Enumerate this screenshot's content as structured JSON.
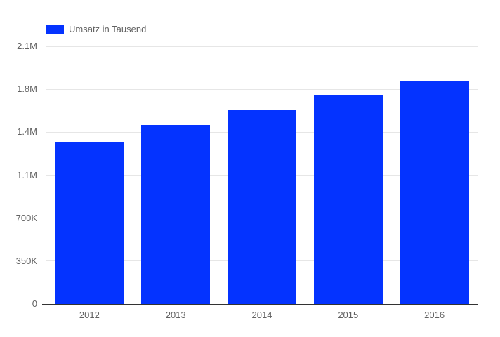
{
  "chart_data": {
    "type": "bar",
    "categories": [
      "2012",
      "2013",
      "2014",
      "2015",
      "2016"
    ],
    "series": [
      {
        "name": "Umsatz in Tausend",
        "values": [
          1320000,
          1460000,
          1580000,
          1700000,
          1820000
        ]
      }
    ],
    "title": "",
    "xlabel": "",
    "ylabel": "",
    "ylim": [
      0,
      2100000
    ],
    "yticks": [
      {
        "value": 0,
        "label": "0"
      },
      {
        "value": 350000,
        "label": "350K"
      },
      {
        "value": 700000,
        "label": "700K"
      },
      {
        "value": 1050000,
        "label": "1.1M"
      },
      {
        "value": 1400000,
        "label": "1.4M"
      },
      {
        "value": 1750000,
        "label": "1.8M"
      },
      {
        "value": 2100000,
        "label": "2.1M"
      }
    ],
    "grid": true,
    "legend_position": "top-left",
    "bar_color": "#0433ff",
    "gridline_color": "#e6e6e6",
    "axis_line_color": "#333333",
    "text_color": "#616161"
  }
}
